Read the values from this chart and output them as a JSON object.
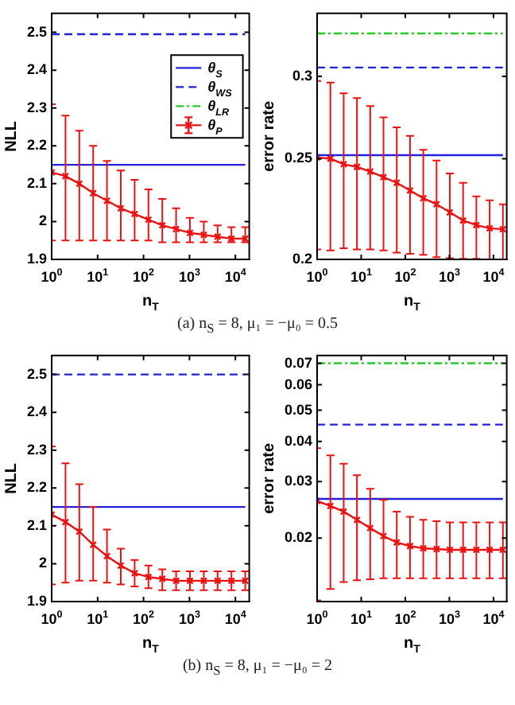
{
  "chart_data": [
    {
      "type": "line",
      "xlabel": "n$_{T}$",
      "ylabel": "NLL",
      "log": "x",
      "legend": "right",
      "annotations": [
        "(a) n$_{S}$ = 8, μ₁ = −μ₀ = 0.5"
      ],
      "x": [
        1,
        2,
        4,
        8,
        16,
        32,
        64,
        128,
        256,
        512,
        1024,
        2048,
        4096,
        8192,
        16384
      ],
      "xlim": [
        1,
        20000
      ],
      "xticks": [
        {
          "value": 1,
          "label": "10$^{0}$"
        },
        {
          "value": 10,
          "label": "10$^{1}$"
        },
        {
          "value": 100,
          "label": "10$^{2}$"
        },
        {
          "value": 1000,
          "label": "10$^{3}$"
        },
        {
          "value": 10000,
          "label": "10$^{4}$"
        }
      ],
      "ylim": [
        1.9,
        2.55
      ],
      "yticks": [
        1.9,
        2,
        2.1,
        2.2,
        2.3,
        2.4,
        2.5
      ],
      "series": [
        {
          "name": "θ$_{S}$",
          "color": "#2222dd",
          "line_style": "solid",
          "marker": "none",
          "values": [
            2.15,
            2.15,
            2.15,
            2.15,
            2.15,
            2.15,
            2.15,
            2.15,
            2.15,
            2.15,
            2.15,
            2.15,
            2.15,
            2.15,
            2.15
          ]
        },
        {
          "name": "θ$_{WS}$",
          "color": "#2222dd",
          "line_style": "dashed",
          "marker": "none",
          "values": [
            2.495,
            2.495,
            2.495,
            2.495,
            2.495,
            2.495,
            2.495,
            2.495,
            2.495,
            2.495,
            2.495,
            2.495,
            2.495,
            2.495,
            2.495
          ]
        },
        {
          "name": "θ$_{LR}$",
          "color": "#22cc22",
          "line_style": "dashdot",
          "marker": "none",
          "values": [
            null,
            null,
            null,
            null,
            null,
            null,
            null,
            null,
            null,
            null,
            null,
            null,
            null,
            null,
            null
          ]
        },
        {
          "name": "θ$_{P}$",
          "color": "#ee1111",
          "line_style": "solid",
          "marker": "cross",
          "values": [
            2.13,
            2.12,
            2.1,
            2.075,
            2.055,
            2.035,
            2.02,
            2.005,
            1.99,
            1.98,
            1.97,
            1.965,
            1.96,
            1.955,
            1.955
          ],
          "errors": [
            [
              1.95,
              2.31
            ],
            [
              1.95,
              2.28
            ],
            [
              1.95,
              2.24
            ],
            [
              1.95,
              2.2
            ],
            [
              1.95,
              2.16
            ],
            [
              1.95,
              2.135
            ],
            [
              1.95,
              2.11
            ],
            [
              1.95,
              2.085
            ],
            [
              1.945,
              2.06
            ],
            [
              1.945,
              2.035
            ],
            [
              1.945,
              2.01
            ],
            [
              1.945,
              2.0
            ],
            [
              1.945,
              1.99
            ],
            [
              1.945,
              1.985
            ],
            [
              1.945,
              1.985
            ]
          ]
        }
      ]
    },
    {
      "type": "line",
      "xlabel": "n$_{T}$",
      "ylabel": "error rate",
      "log": "xy",
      "x": [
        1,
        2,
        4,
        8,
        16,
        32,
        64,
        128,
        256,
        512,
        1024,
        2048,
        4096,
        8192,
        16384
      ],
      "xlim": [
        1,
        20000
      ],
      "xticks": [
        {
          "value": 1,
          "label": "10$^{0}$"
        },
        {
          "value": 10,
          "label": "10$^{1}$"
        },
        {
          "value": 100,
          "label": "10$^{2}$"
        },
        {
          "value": 1000,
          "label": "10$^{3}$"
        },
        {
          "value": 10000,
          "label": "10$^{4}$"
        }
      ],
      "ylim": [
        0.2,
        0.345
      ],
      "yticks": [
        0.2,
        0.25,
        0.3
      ],
      "series": [
        {
          "color": "#2222dd",
          "line_style": "solid",
          "marker": "none",
          "values": [
            0.252,
            0.252,
            0.252,
            0.252,
            0.252,
            0.252,
            0.252,
            0.252,
            0.252,
            0.252,
            0.252,
            0.252,
            0.252,
            0.252,
            0.252
          ]
        },
        {
          "color": "#2222dd",
          "line_style": "dashed",
          "marker": "none",
          "values": [
            0.306,
            0.306,
            0.306,
            0.306,
            0.306,
            0.306,
            0.306,
            0.306,
            0.306,
            0.306,
            0.306,
            0.306,
            0.306,
            0.306,
            0.306
          ]
        },
        {
          "color": "#22cc22",
          "line_style": "dashdot",
          "marker": "none",
          "values": [
            0.33,
            0.33,
            0.33,
            0.33,
            0.33,
            0.33,
            0.33,
            0.33,
            0.33,
            0.33,
            0.33,
            0.33,
            0.33,
            0.33,
            0.33
          ]
        },
        {
          "color": "#ee1111",
          "line_style": "solid",
          "marker": "cross",
          "values": [
            0.2507,
            0.25,
            0.247,
            0.2455,
            0.243,
            0.24,
            0.237,
            0.233,
            0.229,
            0.226,
            0.222,
            0.218,
            0.2158,
            0.2143,
            0.2138
          ],
          "errors": [
            [
              0.2045,
              0.297
            ],
            [
              0.204,
              0.296
            ],
            [
              0.205,
              0.289
            ],
            [
              0.2045,
              0.286
            ],
            [
              0.2045,
              0.281
            ],
            [
              0.204,
              0.274
            ],
            [
              0.203,
              0.268
            ],
            [
              0.2025,
              0.263
            ],
            [
              0.202,
              0.255
            ],
            [
              0.201,
              0.249
            ],
            [
              0.2005,
              0.242
            ],
            [
              0.2003,
              0.237
            ],
            [
              0.2003,
              0.23
            ],
            [
              0.2,
              0.228
            ],
            [
              0.2,
              0.226
            ]
          ]
        }
      ]
    },
    {
      "type": "line",
      "xlabel": "n$_{T}$",
      "ylabel": "NLL",
      "log": "x",
      "annotations": [
        "(b) n$_{S}$ = 8, μ₁ = −μ₀ = 2"
      ],
      "x": [
        1,
        2,
        4,
        8,
        16,
        32,
        64,
        128,
        256,
        512,
        1024,
        2048,
        4096,
        8192,
        16384
      ],
      "xlim": [
        1,
        20000
      ],
      "xticks": [
        {
          "value": 1,
          "label": "10$^{0}$"
        },
        {
          "value": 10,
          "label": "10$^{1}$"
        },
        {
          "value": 100,
          "label": "10$^{2}$"
        },
        {
          "value": 1000,
          "label": "10$^{3}$"
        },
        {
          "value": 10000,
          "label": "10$^{4}$"
        }
      ],
      "ylim": [
        1.9,
        2.55
      ],
      "yticks": [
        1.9,
        2,
        2.1,
        2.2,
        2.3,
        2.4,
        2.5
      ],
      "series": [
        {
          "color": "#2222dd",
          "line_style": "solid",
          "marker": "none",
          "values": [
            2.15,
            2.15,
            2.15,
            2.15,
            2.15,
            2.15,
            2.15,
            2.15,
            2.15,
            2.15,
            2.15,
            2.15,
            2.15,
            2.15,
            2.15
          ]
        },
        {
          "color": "#2222dd",
          "line_style": "dashed",
          "marker": "none",
          "values": [
            2.5,
            2.5,
            2.5,
            2.5,
            2.5,
            2.5,
            2.5,
            2.5,
            2.5,
            2.5,
            2.5,
            2.5,
            2.5,
            2.5,
            2.5
          ]
        },
        {
          "color": "#ee1111",
          "line_style": "solid",
          "marker": "cross",
          "values": [
            2.13,
            2.11,
            2.085,
            2.05,
            2.02,
            1.995,
            1.975,
            1.965,
            1.96,
            1.955,
            1.955,
            1.955,
            1.955,
            1.955,
            1.955
          ],
          "errors": [
            [
              1.945,
              2.31
            ],
            [
              1.95,
              2.265
            ],
            [
              1.955,
              2.21
            ],
            [
              1.955,
              2.15
            ],
            [
              1.95,
              2.09
            ],
            [
              1.945,
              2.04
            ],
            [
              1.94,
              2.01
            ],
            [
              1.935,
              1.995
            ],
            [
              1.93,
              1.985
            ],
            [
              1.93,
              1.98
            ],
            [
              1.93,
              1.98
            ],
            [
              1.93,
              1.98
            ],
            [
              1.93,
              1.98
            ],
            [
              1.93,
              1.98
            ],
            [
              1.93,
              1.98
            ]
          ]
        }
      ]
    },
    {
      "type": "line",
      "xlabel": "n$_{T}$",
      "ylabel": "error rate",
      "log": "xy",
      "x": [
        1,
        2,
        4,
        8,
        16,
        32,
        64,
        128,
        256,
        512,
        1024,
        2048,
        4096,
        8192,
        16384
      ],
      "xlim": [
        1,
        20000
      ],
      "xticks": [
        {
          "value": 1,
          "label": "10$^{0}$"
        },
        {
          "value": 10,
          "label": "10$^{1}$"
        },
        {
          "value": 100,
          "label": "10$^{2}$"
        },
        {
          "value": 1000,
          "label": "10$^{3}$"
        },
        {
          "value": 10000,
          "label": "10$^{4}$"
        }
      ],
      "ylim": [
        0.0127,
        0.074
      ],
      "yticks": [
        0.02,
        0.03,
        0.04,
        0.05,
        0.06,
        0.07
      ],
      "series": [
        {
          "color": "#2222dd",
          "line_style": "solid",
          "marker": "none",
          "values": [
            0.0265,
            0.0265,
            0.0265,
            0.0265,
            0.0265,
            0.0265,
            0.0265,
            0.0265,
            0.0265,
            0.0265,
            0.0265,
            0.0265,
            0.0265,
            0.0265,
            0.0265
          ]
        },
        {
          "color": "#2222dd",
          "line_style": "dashed",
          "marker": "none",
          "values": [
            0.0451,
            0.0451,
            0.0451,
            0.0451,
            0.0451,
            0.0451,
            0.0451,
            0.0451,
            0.0451,
            0.0451,
            0.0451,
            0.0451,
            0.0451,
            0.0451,
            0.0451
          ]
        },
        {
          "color": "#22cc22",
          "line_style": "dashdot",
          "marker": "none",
          "values": [
            0.07,
            0.07,
            0.07,
            0.07,
            0.07,
            0.07,
            0.07,
            0.07,
            0.07,
            0.07,
            0.07,
            0.07,
            0.07,
            0.07,
            0.07
          ]
        },
        {
          "color": "#ee1111",
          "line_style": "solid",
          "marker": "cross",
          "values": [
            0.0261,
            0.0252,
            0.0242,
            0.0228,
            0.0215,
            0.0203,
            0.0194,
            0.0189,
            0.0186,
            0.0185,
            0.0184,
            0.0184,
            0.0184,
            0.0184,
            0.0184
          ],
          "errors": [
            [
              0.0128,
              0.0381
            ],
            [
              0.0139,
              0.0362
            ],
            [
              0.0146,
              0.0341
            ],
            [
              0.0148,
              0.0314
            ],
            [
              0.0149,
              0.0285
            ],
            [
              0.015,
              0.0263
            ],
            [
              0.015,
              0.0242
            ],
            [
              0.015,
              0.0233
            ],
            [
              0.015,
              0.0228
            ],
            [
              0.015,
              0.0226
            ],
            [
              0.015,
              0.0224
            ],
            [
              0.015,
              0.0224
            ],
            [
              0.015,
              0.0224
            ],
            [
              0.015,
              0.0224
            ],
            [
              0.015,
              0.0224
            ]
          ]
        }
      ]
    }
  ]
}
